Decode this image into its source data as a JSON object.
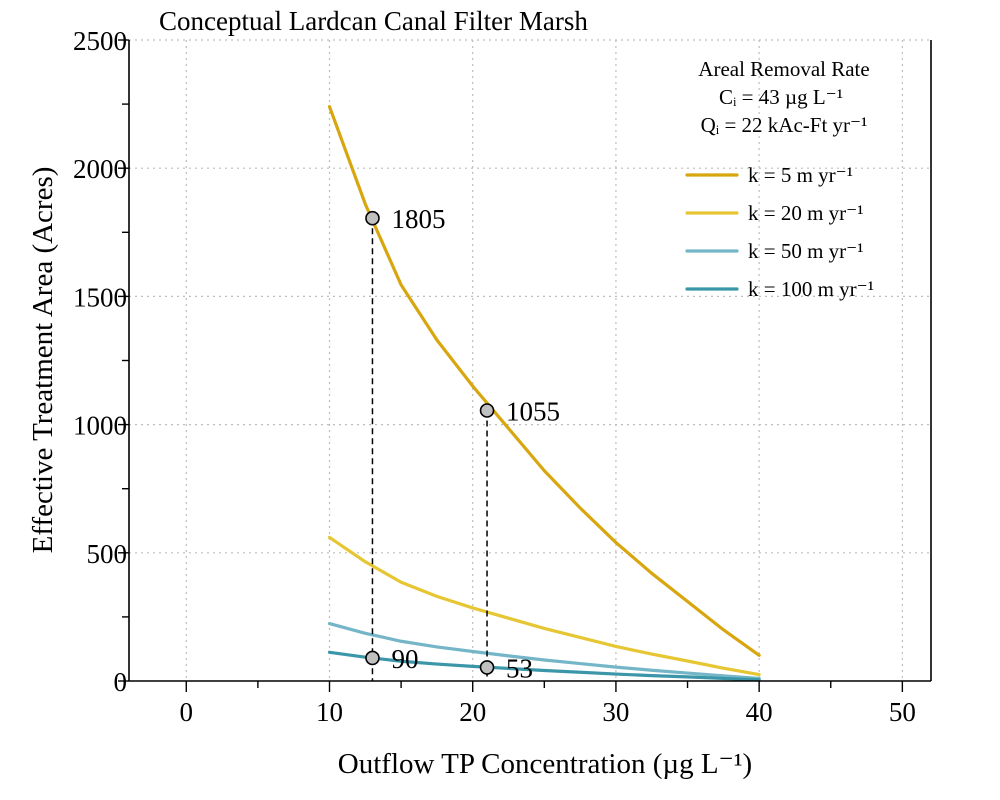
{
  "chart_data": {
    "type": "line",
    "title": "Conceptual Lardcan Canal Filter Marsh",
    "xlabel": "Outflow TP Concentration (µg L⁻¹)",
    "ylabel": "Effective Treatment Area (Acres)",
    "xlim": [
      -4,
      52
    ],
    "ylim": [
      0,
      2500
    ],
    "x_ticks": [
      0,
      10,
      20,
      30,
      40,
      50
    ],
    "x_tick_labels": [
      "0",
      "10",
      "20",
      "30",
      "40",
      "50"
    ],
    "x_minor_ticks": [
      5,
      15,
      25,
      35,
      45
    ],
    "y_ticks": [
      0,
      500,
      1000,
      1500,
      2000,
      2500
    ],
    "y_tick_labels": [
      "0",
      "500",
      "1000",
      "1500",
      "2000",
      "2500"
    ],
    "y_minor_ticks": [
      250,
      750,
      1250,
      1750,
      2250
    ],
    "grid": true,
    "legend": {
      "placement": "top-right",
      "heading": [
        "Areal Removal Rate",
        "Cᵢ = 43 µg L⁻¹",
        "Qᵢ =  22 kAc-Ft yr⁻¹"
      ]
    },
    "series": [
      {
        "name": "k = 5 m yr⁻¹",
        "color": "#d8a60e",
        "x": [
          10,
          12.5,
          15,
          17.5,
          20,
          22.5,
          25,
          27.5,
          30,
          32.5,
          35,
          37.5,
          40
        ],
        "y": [
          2240,
          1860,
          1545,
          1330,
          1150,
          985,
          820,
          675,
          540,
          420,
          310,
          200,
          100
        ]
      },
      {
        "name": "k = 20 m yr⁻¹",
        "color": "#e6c633",
        "x": [
          10,
          12.5,
          15,
          17.5,
          20,
          22.5,
          25,
          27.5,
          30,
          32.5,
          35,
          37.5,
          40
        ],
        "y": [
          560,
          465,
          385,
          330,
          285,
          245,
          205,
          170,
          135,
          105,
          78,
          50,
          25
        ]
      },
      {
        "name": "k = 50 m yr⁻¹",
        "color": "#74b6c8",
        "x": [
          10,
          12.5,
          15,
          17.5,
          20,
          22.5,
          25,
          27.5,
          30,
          32.5,
          35,
          37.5,
          40
        ],
        "y": [
          224,
          186,
          155,
          133,
          115,
          98,
          82,
          68,
          54,
          42,
          31,
          20,
          10
        ]
      },
      {
        "name": "k = 100 m yr⁻¹",
        "color": "#3b96aa",
        "x": [
          10,
          12.5,
          15,
          17.5,
          20,
          22.5,
          25,
          27.5,
          30,
          32.5,
          35,
          37.5,
          40
        ],
        "y": [
          112,
          93,
          77,
          66,
          57,
          49,
          41,
          34,
          27,
          21,
          16,
          10,
          5
        ]
      }
    ],
    "annotations": [
      {
        "x": 13,
        "y": 1805,
        "label": "1805"
      },
      {
        "x": 21,
        "y": 1055,
        "label": "1055"
      },
      {
        "x": 13,
        "y": 90,
        "label": "90"
      },
      {
        "x": 21,
        "y": 53,
        "label": "53"
      }
    ]
  }
}
